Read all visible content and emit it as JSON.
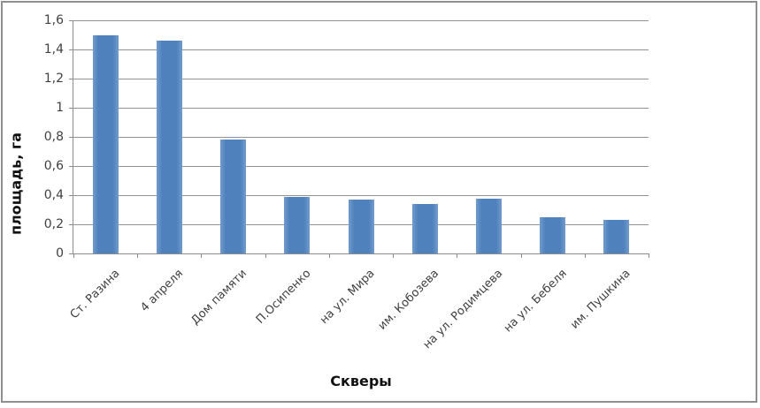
{
  "chart_data": {
    "type": "bar",
    "title": "",
    "categories": [
      "Ст. Разина",
      "4 апреля",
      "Дом памяти",
      "П.Осипенко",
      "на ул. Мира",
      "им. Кобозева",
      "на ул. Родимцева",
      "на ул. Бебеля",
      "им. Пушкина"
    ],
    "values": [
      1.5,
      1.46,
      0.78,
      0.39,
      0.37,
      0.34,
      0.375,
      0.25,
      0.23
    ],
    "xlabel": "Скверы",
    "ylabel": "площадь, га",
    "ylim": [
      0,
      1.6
    ],
    "ytick_step": 0.2,
    "ytick_labels": [
      "0",
      "0,2",
      "0,4",
      "0,6",
      "0,8",
      "1",
      "1,2",
      "1,4",
      "1,6"
    ],
    "grid": true,
    "legend": false,
    "colors": {
      "bar": "#4f81bd",
      "bar_edge": "#719bcc",
      "gridline": "#929292",
      "axis": "#8c8c8c",
      "tick_text": "#3f3f3f",
      "title_text": "#111111",
      "frame_border": "#8f8f8f",
      "background": "#ffffff"
    }
  }
}
